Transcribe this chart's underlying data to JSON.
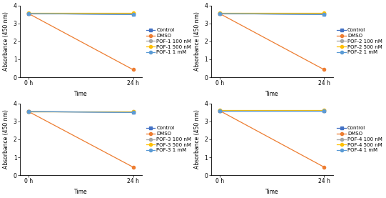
{
  "subplots": [
    {
      "pof_label": "POF-1",
      "series": [
        {
          "name": "Control",
          "x": [
            0,
            24
          ],
          "y": [
            3.55,
            3.5
          ],
          "color": "#4472C4",
          "marker": "s"
        },
        {
          "name": "DMSO",
          "x": [
            0,
            24
          ],
          "y": [
            3.55,
            0.42
          ],
          "color": "#ED7D31",
          "marker": "o"
        },
        {
          "name": "POF-1 100 nM",
          "x": [
            0,
            24
          ],
          "y": [
            3.55,
            3.55
          ],
          "color": "#A5A5A5",
          "marker": "o"
        },
        {
          "name": "POF-1 500 nM",
          "x": [
            0,
            24
          ],
          "y": [
            3.57,
            3.57
          ],
          "color": "#FFC000",
          "marker": "o"
        },
        {
          "name": "POF-1 1 mM",
          "x": [
            0,
            24
          ],
          "y": [
            3.55,
            3.5
          ],
          "color": "#5B9BD5",
          "marker": "o"
        }
      ]
    },
    {
      "pof_label": "POF-2",
      "series": [
        {
          "name": "Control",
          "x": [
            0,
            24
          ],
          "y": [
            3.55,
            3.5
          ],
          "color": "#4472C4",
          "marker": "s"
        },
        {
          "name": "DMSO",
          "x": [
            0,
            24
          ],
          "y": [
            3.55,
            0.42
          ],
          "color": "#ED7D31",
          "marker": "o"
        },
        {
          "name": "POF-2 100 nM",
          "x": [
            0,
            24
          ],
          "y": [
            3.55,
            3.55
          ],
          "color": "#A5A5A5",
          "marker": "o"
        },
        {
          "name": "POF-2 500 nM",
          "x": [
            0,
            24
          ],
          "y": [
            3.57,
            3.57
          ],
          "color": "#FFC000",
          "marker": "o"
        },
        {
          "name": "POF-2 1 mM",
          "x": [
            0,
            24
          ],
          "y": [
            3.55,
            3.5
          ],
          "color": "#5B9BD5",
          "marker": "o"
        }
      ]
    },
    {
      "pof_label": "POF-3",
      "series": [
        {
          "name": "Control",
          "x": [
            0,
            24
          ],
          "y": [
            3.55,
            3.5
          ],
          "color": "#4472C4",
          "marker": "s"
        },
        {
          "name": "DMSO",
          "x": [
            0,
            24
          ],
          "y": [
            3.55,
            0.45
          ],
          "color": "#ED7D31",
          "marker": "o"
        },
        {
          "name": "POF-3 100 nM",
          "x": [
            0,
            24
          ],
          "y": [
            3.55,
            3.55
          ],
          "color": "#A5A5A5",
          "marker": "o"
        },
        {
          "name": "POF-3 500 nM",
          "x": [
            0,
            24
          ],
          "y": [
            3.57,
            3.57
          ],
          "color": "#FFC000",
          "marker": "o"
        },
        {
          "name": "POF-3 1 mM",
          "x": [
            0,
            24
          ],
          "y": [
            3.55,
            3.5
          ],
          "color": "#5B9BD5",
          "marker": "o"
        }
      ]
    },
    {
      "pof_label": "POF-4",
      "series": [
        {
          "name": "Control",
          "x": [
            0,
            24
          ],
          "y": [
            3.6,
            3.6
          ],
          "color": "#4472C4",
          "marker": "s"
        },
        {
          "name": "DMSO",
          "x": [
            0,
            24
          ],
          "y": [
            3.6,
            0.45
          ],
          "color": "#ED7D31",
          "marker": "o"
        },
        {
          "name": "POF-4 100 nM",
          "x": [
            0,
            24
          ],
          "y": [
            3.6,
            3.6
          ],
          "color": "#A5A5A5",
          "marker": "o"
        },
        {
          "name": "POF-4 500 nM",
          "x": [
            0,
            24
          ],
          "y": [
            3.62,
            3.62
          ],
          "color": "#FFC000",
          "marker": "o"
        },
        {
          "name": "POF-4 1 mM",
          "x": [
            0,
            24
          ],
          "y": [
            3.6,
            3.6
          ],
          "color": "#5B9BD5",
          "marker": "o"
        }
      ]
    }
  ],
  "ylabel": "Absorbance (450 nm)",
  "xlabel": "Time",
  "xtick_labels": [
    "0 h",
    "24 h"
  ],
  "ylim": [
    0,
    4
  ],
  "yticks": [
    0,
    1,
    2,
    3,
    4
  ],
  "background_color": "#FFFFFF",
  "figsize": [
    5.41,
    2.77
  ],
  "dpi": 100,
  "line_linewidth": 0.9,
  "marker_size": 3,
  "tick_fontsize": 5.5,
  "axis_label_fontsize": 5.5,
  "legend_fontsize": 5.0
}
